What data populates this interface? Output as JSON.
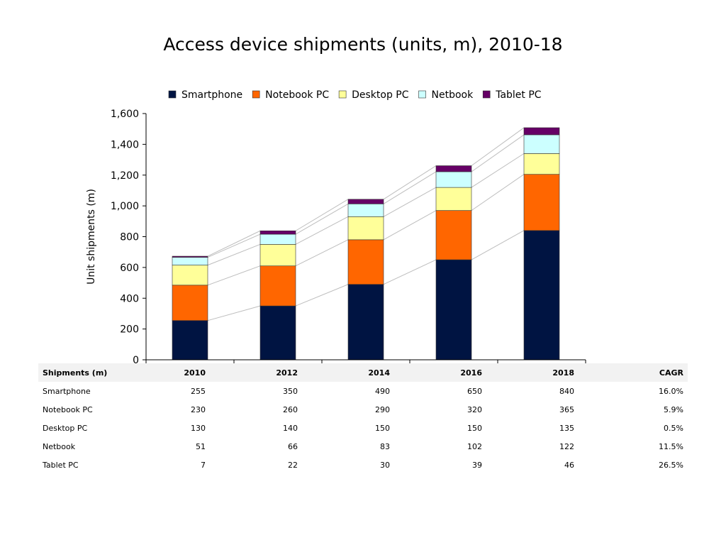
{
  "title": "Access device shipments (units, m), 2010-18",
  "chart_data": {
    "type": "bar",
    "stacked": true,
    "categories": [
      "2010",
      "2012",
      "2014",
      "2016",
      "2018"
    ],
    "series": [
      {
        "name": "Smartphone",
        "values": [
          255,
          350,
          490,
          650,
          840
        ],
        "color": "#001442"
      },
      {
        "name": "Notebook PC",
        "values": [
          230,
          260,
          290,
          320,
          365
        ],
        "color": "#ff6600"
      },
      {
        "name": "Desktop PC",
        "values": [
          130,
          140,
          150,
          150,
          135
        ],
        "color": "#ffff99"
      },
      {
        "name": "Netbook",
        "values": [
          51,
          66,
          83,
          102,
          122
        ],
        "color": "#ccffff"
      },
      {
        "name": "Tablet PC",
        "values": [
          7,
          22,
          30,
          39,
          46
        ],
        "color": "#660066"
      }
    ],
    "ylabel": "Unit shipments (m)",
    "xlabel": "",
    "ylim": [
      0,
      1600
    ],
    "yticks": [
      "0",
      "200",
      "400",
      "600",
      "800",
      "1,000",
      "1,200",
      "1,400",
      "1,600"
    ],
    "legend_position": "top",
    "series_lines": true,
    "grid": false
  },
  "table": {
    "header": [
      "Shipments (m)",
      "2010",
      "2012",
      "2014",
      "2016",
      "2018",
      "CAGR"
    ],
    "rows": [
      {
        "label": "Smartphone",
        "values": [
          "255",
          "350",
          "490",
          "650",
          "840"
        ],
        "cagr": "16.0%"
      },
      {
        "label": "Notebook PC",
        "values": [
          "230",
          "260",
          "290",
          "320",
          "365"
        ],
        "cagr": "5.9%"
      },
      {
        "label": "Desktop PC",
        "values": [
          "130",
          "140",
          "150",
          "150",
          "135"
        ],
        "cagr": "0.5%"
      },
      {
        "label": "Netbook",
        "values": [
          "51",
          "66",
          "83",
          "102",
          "122"
        ],
        "cagr": "11.5%"
      },
      {
        "label": "Tablet PC",
        "values": [
          "7",
          "22",
          "30",
          "39",
          "46"
        ],
        "cagr": "26.5%"
      }
    ]
  }
}
